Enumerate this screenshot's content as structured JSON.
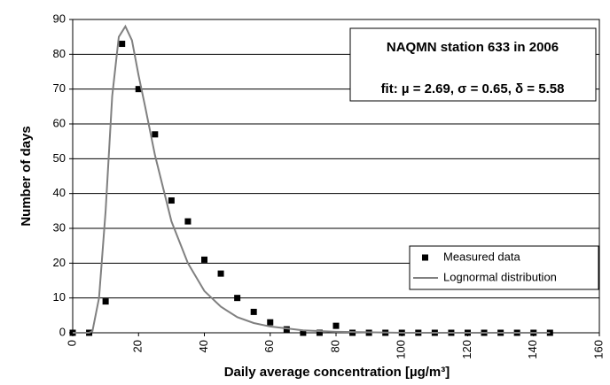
{
  "chart_data": {
    "type": "scatter",
    "x_label": "Daily average concentration [µg/m³]",
    "y_label": "Number of days",
    "annotations": [
      "NAQMN station 633 in 2006",
      "fit: µ = 2.69, σ = 0.65, δ =  5.58"
    ],
    "xlim": [
      0,
      160
    ],
    "xticks": [
      0,
      20,
      40,
      60,
      80,
      100,
      120,
      140,
      160
    ],
    "ylim": [
      0,
      90
    ],
    "yticks": [
      0,
      10,
      20,
      30,
      40,
      50,
      60,
      70,
      80,
      90
    ],
    "grid": true,
    "legend": "lower right",
    "series": [
      {
        "name": "Measured data",
        "type": "scatter",
        "color": "#000000",
        "x": [
          0,
          5,
          10,
          15,
          20,
          25,
          30,
          35,
          40,
          45,
          50,
          55,
          60,
          65,
          70,
          75,
          80,
          85,
          90,
          95,
          100,
          105,
          110,
          115,
          120,
          125,
          130,
          135,
          140,
          145
        ],
        "values": [
          0,
          0,
          9,
          83,
          70,
          57,
          38,
          32,
          21,
          17,
          10,
          6,
          3,
          1,
          0,
          0,
          2,
          0,
          0,
          0,
          0,
          0,
          0,
          0,
          0,
          0,
          0,
          0,
          0,
          0
        ]
      },
      {
        "name": "Lognormal distribution",
        "type": "line",
        "color": "#808080",
        "x": [
          0,
          5,
          6,
          8,
          10,
          12,
          14,
          16,
          18,
          20,
          22,
          25,
          30,
          35,
          40,
          45,
          50,
          55,
          60,
          70,
          80,
          100,
          145
        ],
        "values": [
          0,
          0,
          0.5,
          10,
          35,
          68,
          85,
          88,
          84,
          74,
          65,
          51,
          32,
          20,
          12,
          7.5,
          4.5,
          2.8,
          1.8,
          0.7,
          0.3,
          0,
          0
        ]
      }
    ]
  }
}
